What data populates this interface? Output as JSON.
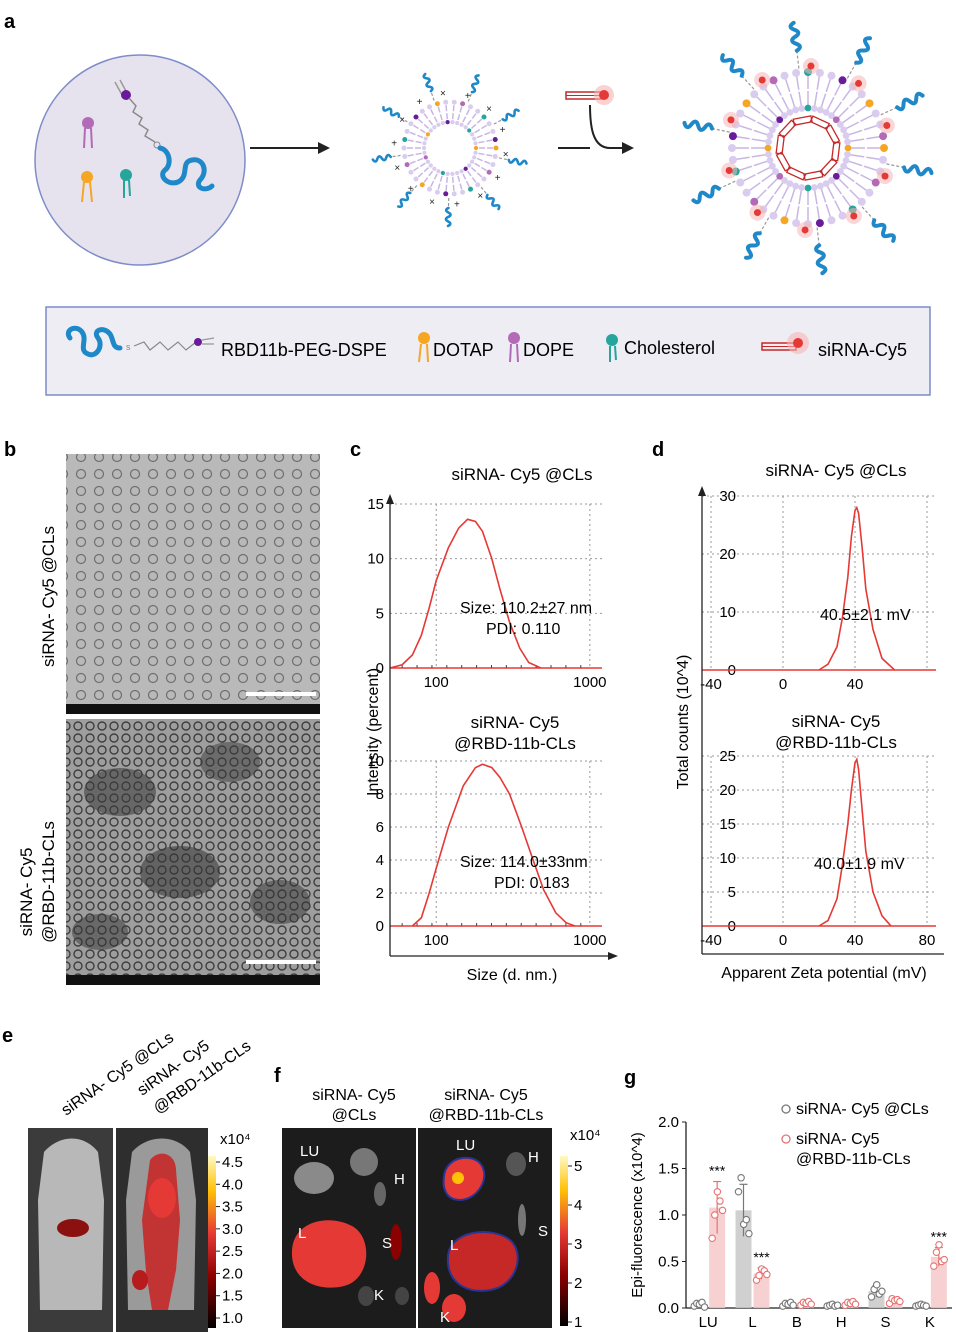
{
  "panel_letters": {
    "a": "a",
    "b": "b",
    "c": "c",
    "d": "d",
    "e": "e",
    "f": "f",
    "g": "g"
  },
  "legend_a": {
    "peg": "RBD11b-PEG-DSPE",
    "dotap": "DOTAP",
    "dope": "DOPE",
    "chol": "Cholesterol",
    "sirna": "siRNA-Cy5"
  },
  "colors": {
    "red": "#e53935",
    "pink_fill": "#f6c9c9",
    "grey_fill": "#c8c8c8",
    "lipid_purple": "#6a1b9a",
    "dotap_orange": "#f5a623",
    "chol_teal": "#26a69a",
    "peg_blue": "#1e88c8"
  },
  "panel_b": {
    "label_top": "siRNA- Cy5 @CLs",
    "label_bottom_1": "siRNA- Cy5",
    "label_bottom_2": "@RBD-11b-CLs"
  },
  "panel_c": {
    "title_top": "siRNA- Cy5 @CLs",
    "title_bottom_1": "siRNA- Cy5",
    "title_bottom_2": "@RBD-11b-CLs",
    "ylabel": "Intensity (percent)",
    "xlabel": "Size (d. nm.)",
    "anno_top_1": "Size: 110.2±27 nm",
    "anno_top_2": "PDI: 0.110",
    "anno_bottom_1": "Size: 114.0±33nm",
    "anno_bottom_2": "PDI: 0.183"
  },
  "panel_d": {
    "title_top": "siRNA- Cy5 @CLs",
    "title_bottom_1": "siRNA- Cy5",
    "title_bottom_2": "@RBD-11b-CLs",
    "ylabel": "Total counts (10^4)",
    "xlabel": "Apparent Zeta potential (mV)",
    "anno_top": "40.5±2.1 mV",
    "anno_bottom": "40.0±1.9 mV"
  },
  "panel_e": {
    "label_1": "siRNA- Cy5 @CLs",
    "label_2a": "siRNA- Cy5",
    "label_2b": "@RBD-11b-CLs",
    "scale_unit": "x10⁴",
    "scale_ticks": [
      "4.5",
      "4.0",
      "3.5",
      "3.0",
      "2.5",
      "2.0",
      "1.5",
      "1.0"
    ]
  },
  "panel_f": {
    "label_1a": "siRNA- Cy5",
    "label_1b": "@CLs",
    "label_2a": "siRNA- Cy5",
    "label_2b": "@RBD-11b-CLs",
    "scale_unit": "x10⁴",
    "scale_ticks": [
      "5",
      "4",
      "3",
      "2",
      "1"
    ],
    "organs_left": [
      "LU",
      "H",
      "L",
      "S",
      "K"
    ],
    "organs_right": [
      "LU",
      "H",
      "S",
      "L",
      "K"
    ]
  },
  "chart_data": [
    {
      "type": "line",
      "panel": "c-top",
      "title": "siRNA- Cy5 @CLs",
      "xlabel": "Size (d. nm.)",
      "ylabel": "Intensity (percent)",
      "xscale": "log",
      "xticks": [
        "100",
        "1000"
      ],
      "yticks": [
        "0",
        "5",
        "10",
        "15"
      ],
      "ylim": [
        0,
        15
      ],
      "grid": true,
      "x": [
        50,
        60,
        70,
        80,
        90,
        100,
        120,
        140,
        160,
        180,
        200,
        230,
        260,
        300,
        350,
        400,
        480
      ],
      "y": [
        0,
        0.3,
        1.2,
        3,
        5.5,
        8,
        11,
        12.8,
        13.6,
        13.4,
        12.5,
        10,
        7.2,
        4.2,
        1.8,
        0.5,
        0
      ],
      "annotations": [
        "Size: 110.2±27 nm",
        "PDI: 0.110"
      ]
    },
    {
      "type": "line",
      "panel": "c-bottom",
      "title": "siRNA- Cy5 @RBD-11b-CLs",
      "xlabel": "Size (d. nm.)",
      "ylabel": "Intensity (percent)",
      "xscale": "log",
      "xticks": [
        "100",
        "1000"
      ],
      "yticks": [
        "0",
        "2",
        "4",
        "6",
        "8",
        "10"
      ],
      "ylim": [
        0,
        10
      ],
      "grid": true,
      "x": [
        70,
        80,
        90,
        100,
        120,
        150,
        180,
        200,
        230,
        260,
        300,
        360,
        420,
        500,
        600,
        700,
        800
      ],
      "y": [
        0,
        0.5,
        2,
        3.5,
        6,
        8.5,
        9.6,
        9.8,
        9.6,
        9.0,
        8.0,
        6.0,
        4.2,
        2.2,
        0.8,
        0.2,
        0
      ],
      "annotations": [
        "Size: 114.0±33nm",
        "PDI: 0.183"
      ]
    },
    {
      "type": "line",
      "panel": "d-top",
      "title": "siRNA- Cy5 @CLs",
      "xlabel": "Apparent Zeta potential (mV)",
      "ylabel": "Total counts (10^4)",
      "xticks": [
        "-40",
        "0",
        "40"
      ],
      "yticks": [
        "0",
        "10",
        "20",
        "30"
      ],
      "ylim": [
        0,
        30
      ],
      "grid": true,
      "x": [
        20,
        25,
        30,
        33,
        36,
        38,
        40,
        41,
        42,
        44,
        46,
        50,
        55,
        62
      ],
      "y": [
        0,
        1,
        4,
        9,
        16,
        23,
        27.5,
        28,
        27,
        21,
        14,
        7,
        2,
        0
      ],
      "annotations": [
        "40.5±2.1 mV"
      ]
    },
    {
      "type": "line",
      "panel": "d-bottom",
      "title": "siRNA- Cy5 @RBD-11b-CLs",
      "xlabel": "Apparent Zeta potential (mV)",
      "ylabel": "Total counts (10^4)",
      "xticks": [
        "-40",
        "0",
        "40",
        "80"
      ],
      "yticks": [
        "0",
        "5",
        "10",
        "15",
        "20",
        "25"
      ],
      "ylim": [
        0,
        25
      ],
      "grid": true,
      "x": [
        20,
        25,
        30,
        33,
        36,
        38,
        40,
        41,
        42,
        44,
        46,
        50,
        55,
        60
      ],
      "y": [
        0,
        0.8,
        4,
        9,
        15,
        20,
        24,
        24.5,
        23,
        17,
        11,
        5,
        1.5,
        0
      ],
      "annotations": [
        "40.0±1.9 mV"
      ]
    },
    {
      "type": "bar",
      "panel": "g",
      "ylabel": "Epi-fluorescence (x10^4)",
      "categories": [
        "LU",
        "L",
        "B",
        "H",
        "S",
        "K"
      ],
      "yticks": [
        "0.0",
        "0.5",
        "1.0",
        "1.5",
        "2.0"
      ],
      "ylim": [
        0,
        2.0
      ],
      "series": [
        {
          "name": "siRNA- Cy5 @CLs",
          "values": [
            0.04,
            1.05,
            0.04,
            0.03,
            0.18,
            0.03
          ],
          "errors": [
            0.03,
            0.28,
            0.02,
            0.02,
            0.06,
            0.02
          ],
          "points": [
            [
              0.02,
              0.05,
              0.04,
              0.06,
              0.01
            ],
            [
              1.25,
              1.4,
              0.9,
              0.95,
              0.8
            ],
            [
              0.02,
              0.05,
              0.04,
              0.06,
              0.03
            ],
            [
              0.02,
              0.03,
              0.04,
              0.02,
              0.03
            ],
            [
              0.12,
              0.2,
              0.25,
              0.15,
              0.18
            ],
            [
              0.02,
              0.03,
              0.04,
              0.03,
              0.02
            ]
          ]
        },
        {
          "name": "siRNA- Cy5 @RBD-11b-CLs",
          "values": [
            1.08,
            0.37,
            0.05,
            0.05,
            0.08,
            0.55
          ],
          "errors": [
            0.28,
            0.06,
            0.02,
            0.02,
            0.03,
            0.1
          ],
          "points": [
            [
              0.75,
              1.0,
              1.25,
              1.15,
              1.05
            ],
            [
              0.3,
              0.35,
              0.42,
              0.4,
              0.36
            ],
            [
              0.03,
              0.06,
              0.05,
              0.07,
              0.04
            ],
            [
              0.03,
              0.06,
              0.05,
              0.07,
              0.04
            ],
            [
              0.05,
              0.1,
              0.08,
              0.09,
              0.07
            ],
            [
              0.45,
              0.6,
              0.68,
              0.5,
              0.52
            ]
          ]
        }
      ],
      "significance": [
        {
          "category": "LU",
          "series": 1,
          "label": "***"
        },
        {
          "category": "L",
          "series": 1,
          "label": "***"
        },
        {
          "category": "K",
          "series": 1,
          "label": "***"
        }
      ],
      "legend": "top-right"
    }
  ]
}
